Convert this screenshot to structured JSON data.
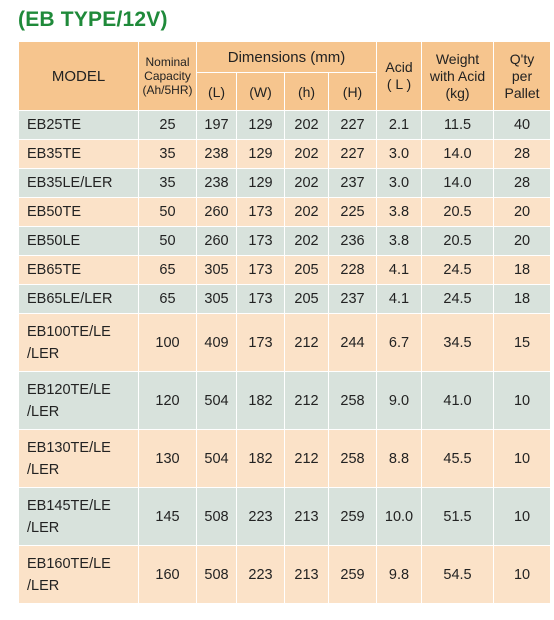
{
  "title": "(EB TYPE/12V)",
  "headers": {
    "model": "MODEL",
    "nominal_capacity": [
      "Nominal",
      "Capacity",
      "(Ah/5HR)"
    ],
    "dimensions": "Dimensions (mm)",
    "dim_l": "(L)",
    "dim_w": "(W)",
    "dim_h": "(h)",
    "dim_H": "(H)",
    "acid": [
      "Acid",
      "( L )"
    ],
    "weight": [
      "Weight",
      "with Acid",
      "(kg)"
    ],
    "qty": [
      "Q'ty",
      "per",
      "Pallet"
    ]
  },
  "rows": [
    {
      "model": [
        "EB25TE"
      ],
      "capacity": "25",
      "L": "197",
      "W": "129",
      "h": "202",
      "H": "227",
      "acid": "2.1",
      "weight": "11.5",
      "qty": "40"
    },
    {
      "model": [
        "EB35TE"
      ],
      "capacity": "35",
      "L": "238",
      "W": "129",
      "h": "202",
      "H": "227",
      "acid": "3.0",
      "weight": "14.0",
      "qty": "28"
    },
    {
      "model": [
        "EB35LE/LER"
      ],
      "capacity": "35",
      "L": "238",
      "W": "129",
      "h": "202",
      "H": "237",
      "acid": "3.0",
      "weight": "14.0",
      "qty": "28"
    },
    {
      "model": [
        "EB50TE"
      ],
      "capacity": "50",
      "L": "260",
      "W": "173",
      "h": "202",
      "H": "225",
      "acid": "3.8",
      "weight": "20.5",
      "qty": "20"
    },
    {
      "model": [
        "EB50LE"
      ],
      "capacity": "50",
      "L": "260",
      "W": "173",
      "h": "202",
      "H": "236",
      "acid": "3.8",
      "weight": "20.5",
      "qty": "20"
    },
    {
      "model": [
        "EB65TE"
      ],
      "capacity": "65",
      "L": "305",
      "W": "173",
      "h": "205",
      "H": "228",
      "acid": "4.1",
      "weight": "24.5",
      "qty": "18"
    },
    {
      "model": [
        "EB65LE/LER"
      ],
      "capacity": "65",
      "L": "305",
      "W": "173",
      "h": "205",
      "H": "237",
      "acid": "4.1",
      "weight": "24.5",
      "qty": "18"
    },
    {
      "model": [
        "EB100TE/LE",
        "/LER"
      ],
      "capacity": "100",
      "L": "409",
      "W": "173",
      "h": "212",
      "H": "244",
      "acid": "6.7",
      "weight": "34.5",
      "qty": "15"
    },
    {
      "model": [
        "EB120TE/LE",
        "/LER"
      ],
      "capacity": "120",
      "L": "504",
      "W": "182",
      "h": "212",
      "H": "258",
      "acid": "9.0",
      "weight": "41.0",
      "qty": "10"
    },
    {
      "model": [
        "EB130TE/LE",
        "/LER"
      ],
      "capacity": "130",
      "L": "504",
      "W": "182",
      "h": "212",
      "H": "258",
      "acid": "8.8",
      "weight": "45.5",
      "qty": "10"
    },
    {
      "model": [
        "EB145TE/LE",
        "/LER"
      ],
      "capacity": "145",
      "L": "508",
      "W": "223",
      "h": "213",
      "H": "259",
      "acid": "10.0",
      "weight": "51.5",
      "qty": "10"
    },
    {
      "model": [
        "EB160TE/LE",
        "/LER"
      ],
      "capacity": "160",
      "L": "508",
      "W": "223",
      "h": "213",
      "H": "259",
      "acid": "9.8",
      "weight": "54.5",
      "qty": "10"
    }
  ]
}
